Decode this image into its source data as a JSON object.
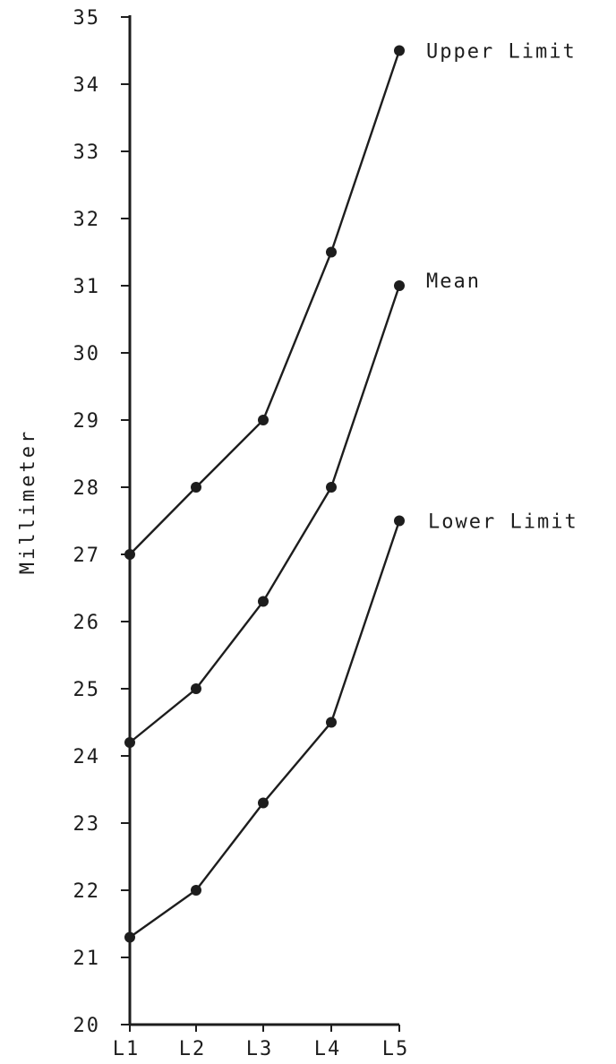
{
  "chart_data": {
    "type": "line",
    "title": "",
    "xlabel": "",
    "ylabel": "Millimeter",
    "categories": [
      "L1",
      "L2",
      "L3",
      "L4",
      "L5"
    ],
    "ylim": [
      20,
      35
    ],
    "yticks": [
      "20",
      "21",
      "22",
      "23",
      "24",
      "25",
      "26",
      "27",
      "28",
      "29",
      "30",
      "31",
      "32",
      "33",
      "34",
      "35"
    ],
    "grid": false,
    "legend": "series labels at right end of each line",
    "series": [
      {
        "name": "Upper Limit",
        "values": [
          27.0,
          28.0,
          29.0,
          31.5,
          34.5
        ]
      },
      {
        "name": "Mean",
        "values": [
          24.2,
          25.0,
          26.3,
          28.0,
          31.0
        ]
      },
      {
        "name": "Lower Limit",
        "values": [
          21.3,
          22.0,
          23.3,
          24.5,
          27.5
        ]
      }
    ]
  }
}
